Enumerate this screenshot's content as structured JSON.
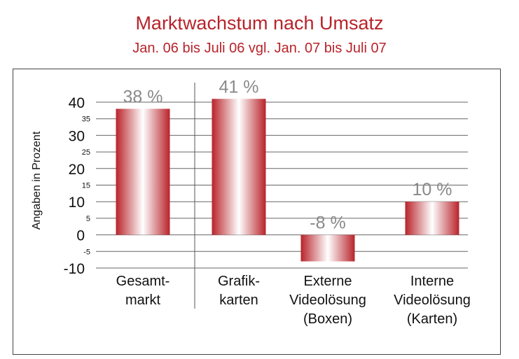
{
  "chart_data": {
    "type": "bar",
    "title": "Marktwachstum nach Umsatz",
    "subtitle": "Jan. 06 bis Juli 06 vgl. Jan. 07 bis Juli 07",
    "ylabel": "Angaben in Prozent",
    "xlabel": "",
    "ylim": [
      -10,
      40
    ],
    "y_ticks_major": [
      "40",
      "30",
      "20",
      "10",
      "0",
      "-10"
    ],
    "y_ticks_minor": [
      "35",
      "25",
      "15",
      "5",
      "-5"
    ],
    "categories": [
      [
        "Gesamt-",
        "markt"
      ],
      [
        "Grafik-",
        "karten"
      ],
      [
        "Externe",
        "Videolösung",
        "(Boxen)"
      ],
      [
        "Interne",
        "Videolösung",
        "(Karten)"
      ]
    ],
    "values": [
      38,
      41,
      -8,
      10
    ],
    "data_labels": [
      "38 %",
      "41 %",
      "-8 %",
      "10 %"
    ],
    "grid": true,
    "bar_color": "#b8232a",
    "legend": "none"
  }
}
